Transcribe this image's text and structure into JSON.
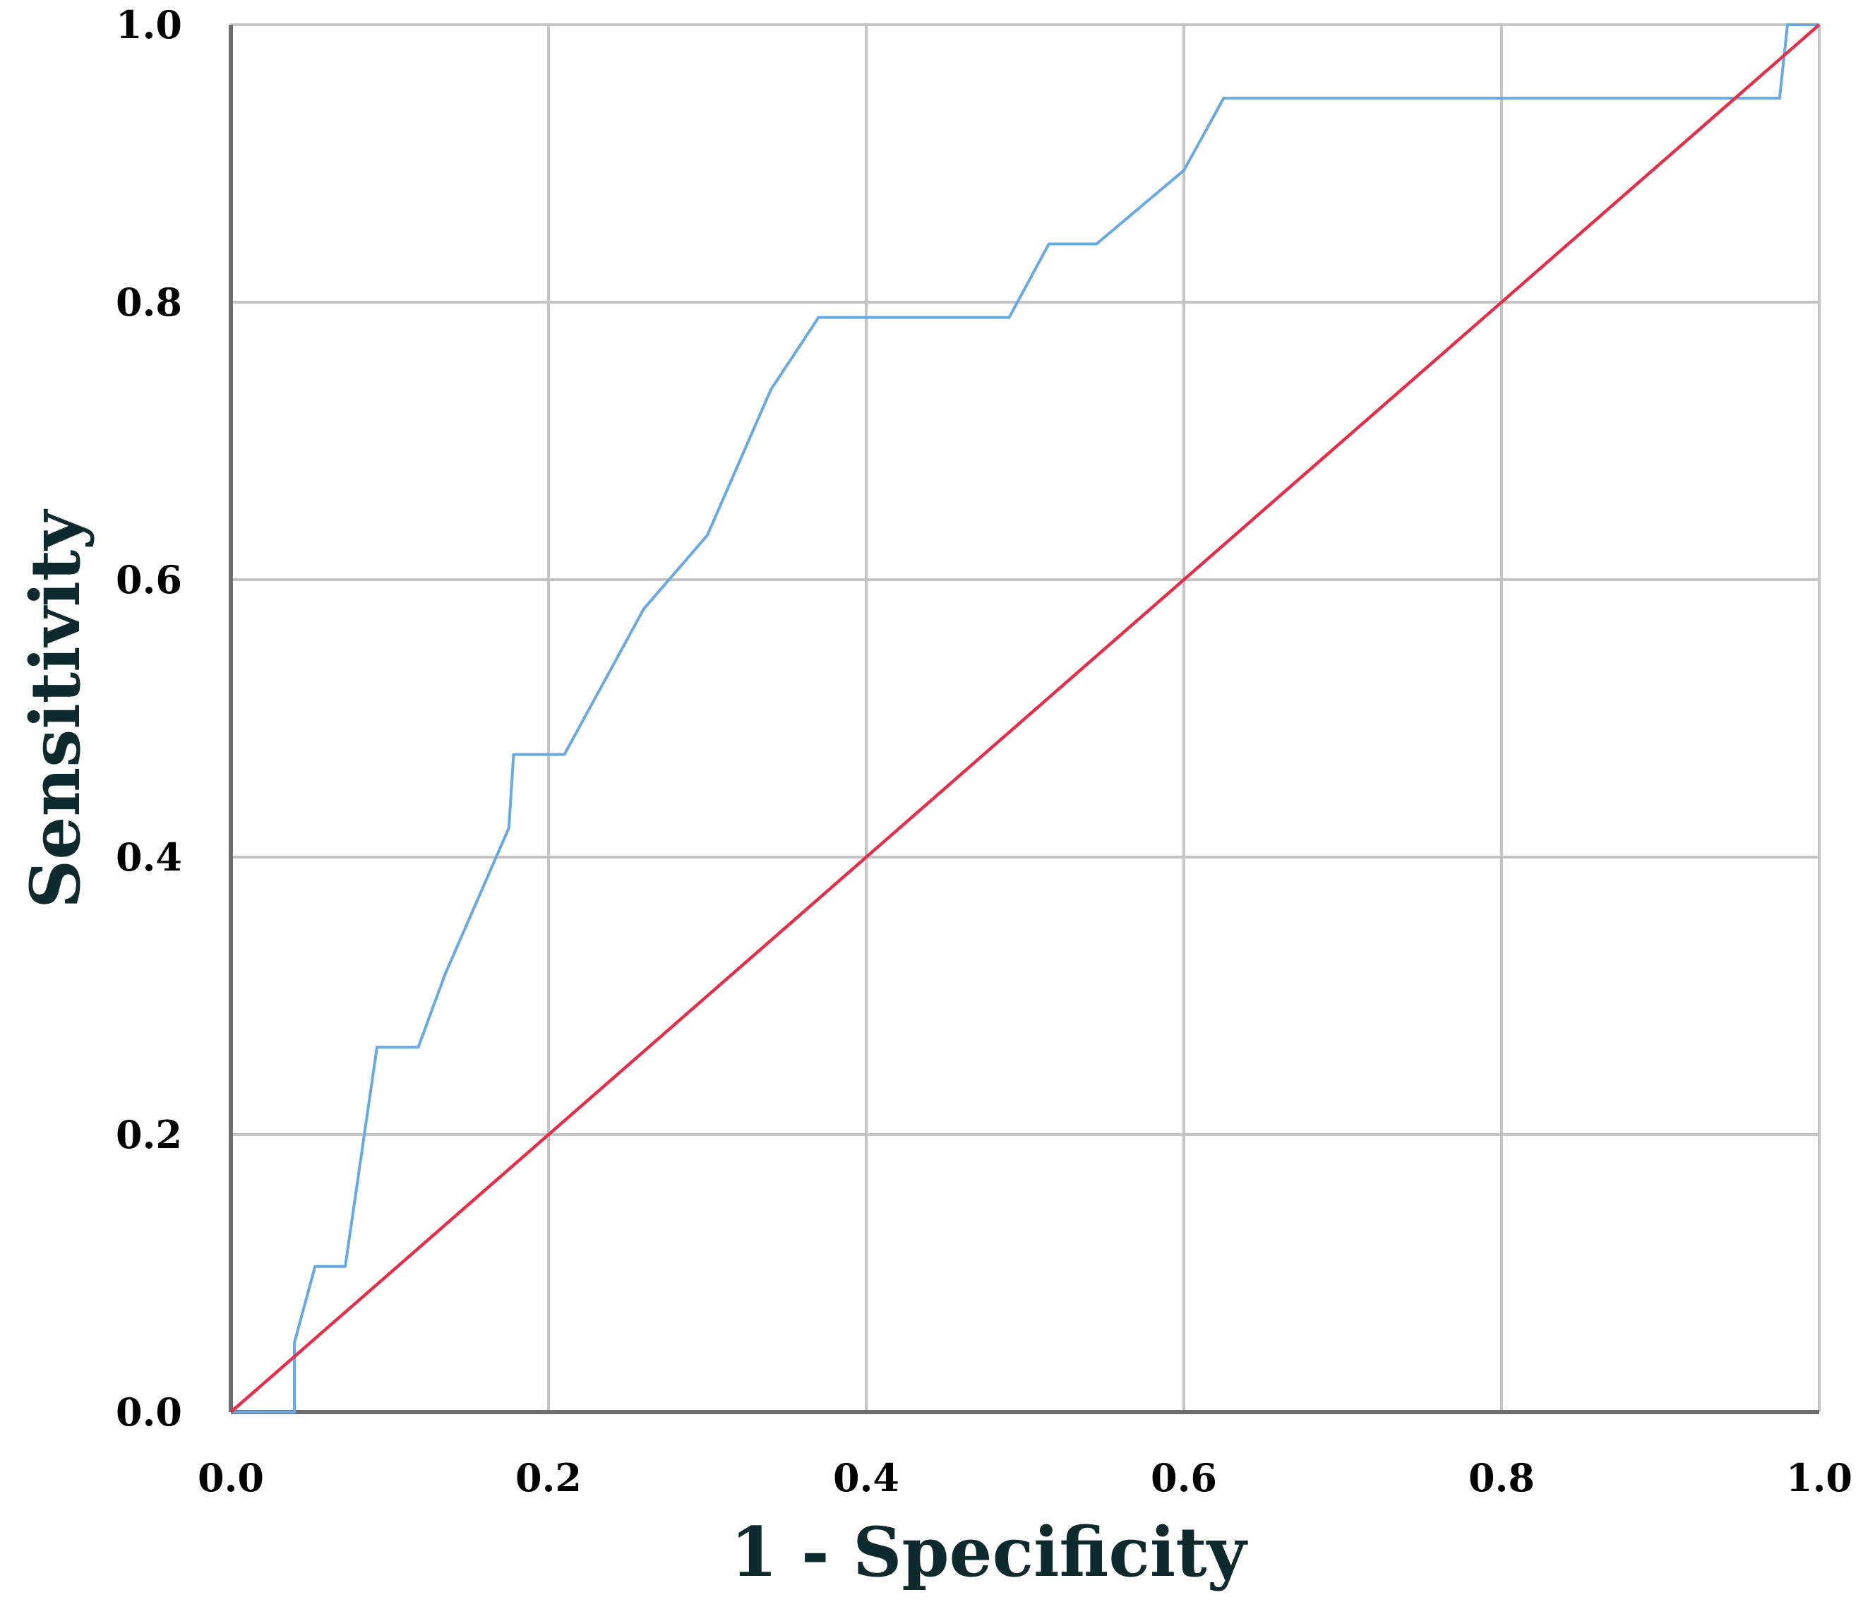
{
  "chart_data": {
    "type": "line",
    "title": "",
    "xlabel": "1 - Specificity",
    "ylabel": "Sensitivity",
    "xlim": [
      0.0,
      1.0
    ],
    "ylim": [
      0.0,
      1.0
    ],
    "x_ticks": [
      "0.0",
      "0.2",
      "0.4",
      "0.6",
      "0.8",
      "1.0"
    ],
    "y_ticks": [
      "0.0",
      "0.2",
      "0.4",
      "0.6",
      "0.8",
      "1.0"
    ],
    "grid": true,
    "legend": "none",
    "series": [
      {
        "color": "#6aa8e0",
        "points": [
          [
            0.0,
            0.0
          ],
          [
            0.04,
            0.0
          ],
          [
            0.04,
            0.05
          ],
          [
            0.053,
            0.105
          ],
          [
            0.072,
            0.105
          ],
          [
            0.092,
            0.263
          ],
          [
            0.118,
            0.263
          ],
          [
            0.135,
            0.316
          ],
          [
            0.175,
            0.421
          ],
          [
            0.178,
            0.474
          ],
          [
            0.21,
            0.474
          ],
          [
            0.26,
            0.579
          ],
          [
            0.3,
            0.632
          ],
          [
            0.34,
            0.737
          ],
          [
            0.37,
            0.789
          ],
          [
            0.49,
            0.789
          ],
          [
            0.515,
            0.842
          ],
          [
            0.545,
            0.842
          ],
          [
            0.6,
            0.895
          ],
          [
            0.625,
            0.947
          ],
          [
            0.975,
            0.947
          ],
          [
            0.98,
            1.0
          ],
          [
            1.0,
            1.0
          ]
        ]
      },
      {
        "color": "#e0304a",
        "points": [
          [
            0.0,
            0.0
          ],
          [
            1.0,
            1.0
          ]
        ]
      }
    ]
  }
}
